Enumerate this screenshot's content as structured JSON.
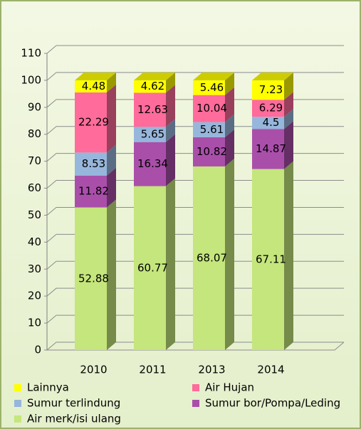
{
  "chart_data": {
    "type": "bar3d_stacked",
    "categories": [
      "2010",
      "2011",
      "2013",
      "2014"
    ],
    "series": [
      {
        "name": "Air merk/isi ulang",
        "color": "#c4e67c",
        "values": [
          52.88,
          60.77,
          68.07,
          67.11
        ]
      },
      {
        "name": "Sumur bor/Pompa/Leding",
        "color": "#a94faa",
        "values": [
          11.82,
          16.34,
          10.82,
          14.87
        ]
      },
      {
        "name": "Sumur terlindung",
        "color": "#97b6dc",
        "values": [
          8.53,
          5.65,
          5.61,
          4.5
        ]
      },
      {
        "name": "Air Hujan",
        "color": "#ff6b9b",
        "values": [
          22.29,
          12.63,
          10.04,
          6.29
        ]
      },
      {
        "name": "Lainnya",
        "color": "#ffff00",
        "values": [
          4.48,
          4.62,
          5.46,
          7.23
        ]
      }
    ],
    "ylim": [
      0,
      110
    ],
    "yticks": [
      0,
      10,
      20,
      30,
      40,
      50,
      60,
      70,
      80,
      90,
      100,
      110
    ],
    "grid": true
  }
}
